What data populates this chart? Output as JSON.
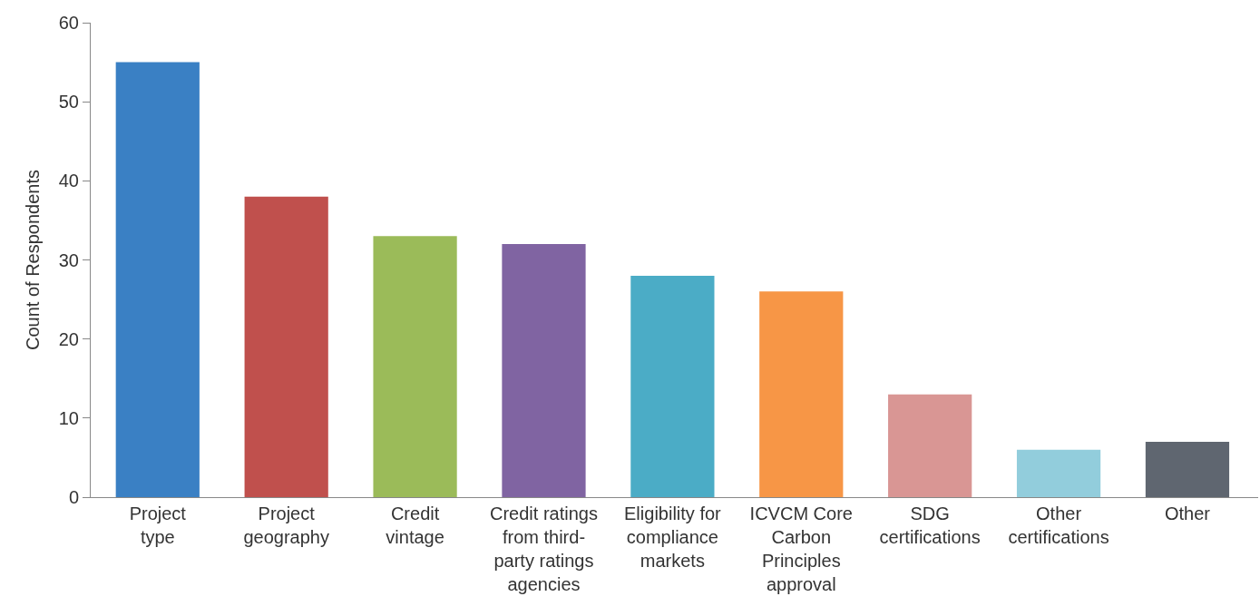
{
  "chart_data": {
    "type": "bar",
    "ylabel": "Count of Respondents",
    "categories": [
      "Project\ntype",
      "Project\ngeography",
      "Credit\nvintage",
      "Credit ratings\nfrom third-\nparty ratings\nagencies",
      "Eligibility for\ncompliance\nmarkets",
      "ICVCM Core\nCarbon\nPrinciples\napproval",
      "SDG\ncertifications",
      "Other\ncertifications",
      "Other"
    ],
    "values": [
      55,
      38,
      33,
      32,
      28,
      26,
      13,
      6,
      7
    ],
    "colors": [
      "#3a80c4",
      "#c0504d",
      "#9bbb59",
      "#8064a2",
      "#4bacc6",
      "#f79646",
      "#d99694",
      "#92cddc",
      "#5f6670"
    ],
    "ylim": [
      0,
      60
    ],
    "yticks": [
      0,
      10,
      20,
      30,
      40,
      50,
      60
    ]
  }
}
